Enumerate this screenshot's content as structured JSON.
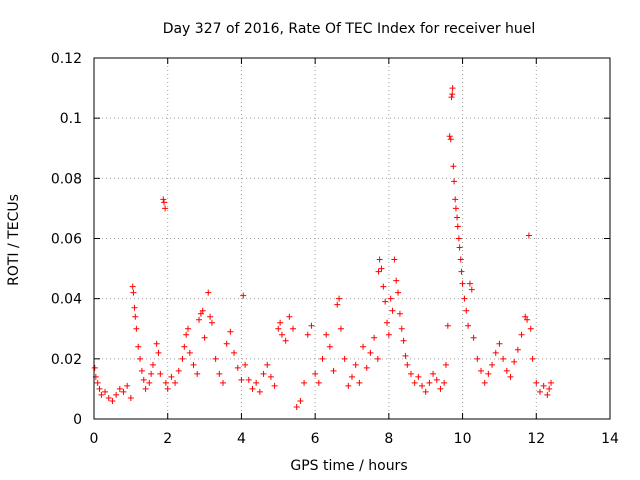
{
  "chart_data": {
    "type": "scatter",
    "title": "Day 327 of 2016, Rate Of TEC Index for receiver huel",
    "xlabel": "GPS time / hours",
    "ylabel": "ROTI / TECUs",
    "xlim": [
      0,
      14
    ],
    "ylim": [
      0,
      0.12
    ],
    "x_ticks": [
      0,
      2,
      4,
      6,
      8,
      10,
      12,
      14
    ],
    "y_ticks": [
      0,
      0.02,
      0.04,
      0.06,
      0.08,
      0.1,
      0.12
    ],
    "x_tick_labels": [
      "0",
      "2",
      "4",
      "6",
      "8",
      "10",
      "12",
      "14"
    ],
    "y_tick_labels": [
      "0",
      "0.02",
      "0.04",
      "0.06",
      "0.08",
      "0.1",
      "0.12"
    ],
    "grid": true,
    "marker": "+",
    "marker_color": "#ff0000",
    "series": [
      {
        "name": "ROTI",
        "points": [
          [
            0.02,
            0.017
          ],
          [
            0.05,
            0.014
          ],
          [
            0.1,
            0.012
          ],
          [
            0.15,
            0.01
          ],
          [
            0.2,
            0.008
          ],
          [
            0.3,
            0.009
          ],
          [
            0.4,
            0.007
          ],
          [
            0.5,
            0.006
          ],
          [
            0.6,
            0.008
          ],
          [
            0.7,
            0.01
          ],
          [
            0.8,
            0.009
          ],
          [
            0.9,
            0.011
          ],
          [
            1.0,
            0.007
          ],
          [
            1.05,
            0.044
          ],
          [
            1.07,
            0.042
          ],
          [
            1.1,
            0.037
          ],
          [
            1.12,
            0.034
          ],
          [
            1.15,
            0.03
          ],
          [
            1.2,
            0.024
          ],
          [
            1.25,
            0.02
          ],
          [
            1.3,
            0.016
          ],
          [
            1.35,
            0.013
          ],
          [
            1.4,
            0.01
          ],
          [
            1.5,
            0.012
          ],
          [
            1.55,
            0.015
          ],
          [
            1.6,
            0.018
          ],
          [
            1.7,
            0.025
          ],
          [
            1.75,
            0.022
          ],
          [
            1.8,
            0.015
          ],
          [
            1.88,
            0.073
          ],
          [
            1.9,
            0.072
          ],
          [
            1.93,
            0.07
          ],
          [
            1.95,
            0.012
          ],
          [
            2.0,
            0.01
          ],
          [
            2.1,
            0.014
          ],
          [
            2.2,
            0.012
          ],
          [
            2.3,
            0.016
          ],
          [
            2.4,
            0.02
          ],
          [
            2.45,
            0.024
          ],
          [
            2.5,
            0.028
          ],
          [
            2.55,
            0.03
          ],
          [
            2.6,
            0.022
          ],
          [
            2.7,
            0.018
          ],
          [
            2.8,
            0.015
          ],
          [
            2.85,
            0.033
          ],
          [
            2.9,
            0.035
          ],
          [
            2.95,
            0.036
          ],
          [
            3.0,
            0.027
          ],
          [
            3.1,
            0.042
          ],
          [
            3.15,
            0.034
          ],
          [
            3.2,
            0.032
          ],
          [
            3.3,
            0.02
          ],
          [
            3.4,
            0.015
          ],
          [
            3.5,
            0.012
          ],
          [
            3.6,
            0.025
          ],
          [
            3.7,
            0.029
          ],
          [
            3.8,
            0.022
          ],
          [
            3.9,
            0.017
          ],
          [
            4.0,
            0.013
          ],
          [
            4.05,
            0.041
          ],
          [
            4.1,
            0.018
          ],
          [
            4.2,
            0.013
          ],
          [
            4.3,
            0.01
          ],
          [
            4.4,
            0.012
          ],
          [
            4.5,
            0.009
          ],
          [
            4.6,
            0.015
          ],
          [
            4.7,
            0.018
          ],
          [
            4.8,
            0.014
          ],
          [
            4.9,
            0.011
          ],
          [
            5.0,
            0.03
          ],
          [
            5.05,
            0.032
          ],
          [
            5.1,
            0.028
          ],
          [
            5.2,
            0.026
          ],
          [
            5.3,
            0.034
          ],
          [
            5.4,
            0.03
          ],
          [
            5.5,
            0.004
          ],
          [
            5.6,
            0.006
          ],
          [
            5.7,
            0.012
          ],
          [
            5.8,
            0.028
          ],
          [
            5.9,
            0.031
          ],
          [
            6.0,
            0.015
          ],
          [
            6.1,
            0.012
          ],
          [
            6.2,
            0.02
          ],
          [
            6.3,
            0.028
          ],
          [
            6.4,
            0.024
          ],
          [
            6.5,
            0.016
          ],
          [
            6.6,
            0.038
          ],
          [
            6.65,
            0.04
          ],
          [
            6.7,
            0.03
          ],
          [
            6.8,
            0.02
          ],
          [
            6.9,
            0.011
          ],
          [
            7.0,
            0.014
          ],
          [
            7.1,
            0.018
          ],
          [
            7.2,
            0.012
          ],
          [
            7.3,
            0.024
          ],
          [
            7.4,
            0.017
          ],
          [
            7.5,
            0.022
          ],
          [
            7.6,
            0.027
          ],
          [
            7.7,
            0.02
          ],
          [
            7.72,
            0.049
          ],
          [
            7.75,
            0.053
          ],
          [
            7.8,
            0.05
          ],
          [
            7.85,
            0.044
          ],
          [
            7.9,
            0.039
          ],
          [
            7.95,
            0.032
          ],
          [
            8.0,
            0.028
          ],
          [
            8.05,
            0.04
          ],
          [
            8.1,
            0.036
          ],
          [
            8.15,
            0.053
          ],
          [
            8.2,
            0.046
          ],
          [
            8.25,
            0.042
          ],
          [
            8.3,
            0.035
          ],
          [
            8.35,
            0.03
          ],
          [
            8.4,
            0.026
          ],
          [
            8.45,
            0.021
          ],
          [
            8.5,
            0.018
          ],
          [
            8.6,
            0.015
          ],
          [
            8.7,
            0.012
          ],
          [
            8.8,
            0.014
          ],
          [
            8.9,
            0.011
          ],
          [
            9.0,
            0.009
          ],
          [
            9.1,
            0.012
          ],
          [
            9.2,
            0.015
          ],
          [
            9.3,
            0.013
          ],
          [
            9.4,
            0.01
          ],
          [
            9.5,
            0.012
          ],
          [
            9.55,
            0.018
          ],
          [
            9.6,
            0.031
          ],
          [
            9.65,
            0.094
          ],
          [
            9.68,
            0.093
          ],
          [
            9.7,
            0.107
          ],
          [
            9.72,
            0.108
          ],
          [
            9.73,
            0.11
          ],
          [
            9.75,
            0.084
          ],
          [
            9.77,
            0.079
          ],
          [
            9.8,
            0.073
          ],
          [
            9.82,
            0.07
          ],
          [
            9.85,
            0.067
          ],
          [
            9.87,
            0.064
          ],
          [
            9.9,
            0.06
          ],
          [
            9.92,
            0.057
          ],
          [
            9.95,
            0.053
          ],
          [
            9.97,
            0.049
          ],
          [
            10.0,
            0.045
          ],
          [
            10.05,
            0.04
          ],
          [
            10.1,
            0.036
          ],
          [
            10.15,
            0.031
          ],
          [
            10.2,
            0.045
          ],
          [
            10.25,
            0.043
          ],
          [
            10.3,
            0.027
          ],
          [
            10.4,
            0.02
          ],
          [
            10.5,
            0.016
          ],
          [
            10.6,
            0.012
          ],
          [
            10.7,
            0.015
          ],
          [
            10.8,
            0.018
          ],
          [
            10.9,
            0.022
          ],
          [
            11.0,
            0.025
          ],
          [
            11.1,
            0.02
          ],
          [
            11.2,
            0.016
          ],
          [
            11.3,
            0.014
          ],
          [
            11.4,
            0.019
          ],
          [
            11.5,
            0.023
          ],
          [
            11.6,
            0.028
          ],
          [
            11.7,
            0.034
          ],
          [
            11.75,
            0.033
          ],
          [
            11.8,
            0.061
          ],
          [
            11.85,
            0.03
          ],
          [
            11.9,
            0.02
          ],
          [
            12.0,
            0.012
          ],
          [
            12.1,
            0.009
          ],
          [
            12.2,
            0.011
          ],
          [
            12.3,
            0.008
          ],
          [
            12.35,
            0.01
          ],
          [
            12.4,
            0.012
          ]
        ]
      }
    ]
  }
}
